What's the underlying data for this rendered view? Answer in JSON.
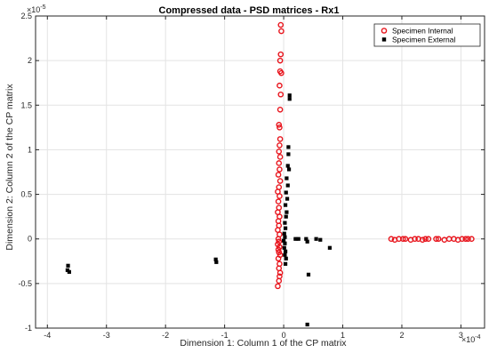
{
  "chart_data": {
    "type": "scatter",
    "title": "Compressed data - PSD matrices - Rx1",
    "xlabel": "Dimension 1: Column 1 of the CP matrix",
    "ylabel": "Dimension 2: Column 2 of the CP matrix",
    "x_exponent_label": "×10",
    "x_exponent_power": "-4",
    "y_exponent_label": "×10",
    "y_exponent_power": "-5",
    "xlim": [
      -4.2,
      3.4
    ],
    "ylim": [
      -1.0,
      2.5
    ],
    "x_ticks": [
      -4,
      -3,
      -2,
      -1,
      0,
      1,
      2,
      3
    ],
    "x_tick_labels": [
      "-4",
      "-3",
      "-2",
      "-1",
      "0",
      "1",
      "2",
      "3"
    ],
    "y_ticks": [
      -1,
      -0.5,
      0,
      0.5,
      1,
      1.5,
      2,
      2.5
    ],
    "y_tick_labels": [
      "-1",
      "-0.5",
      "0",
      "0.5",
      "1",
      "1.5",
      "2",
      "2.5"
    ],
    "grid": true,
    "legend_position": "top-right",
    "series": [
      {
        "name": "Specimen Internal",
        "marker": "circle-open",
        "color": "#e8141c",
        "points": [
          [
            -0.05,
            2.4
          ],
          [
            -0.04,
            2.33
          ],
          [
            -0.05,
            2.07
          ],
          [
            -0.06,
            2.0
          ],
          [
            -0.06,
            1.88
          ],
          [
            -0.04,
            1.86
          ],
          [
            -0.07,
            1.72
          ],
          [
            -0.05,
            1.62
          ],
          [
            -0.06,
            1.45
          ],
          [
            -0.08,
            1.28
          ],
          [
            -0.07,
            1.25
          ],
          [
            -0.06,
            1.12
          ],
          [
            -0.07,
            1.05
          ],
          [
            -0.08,
            0.98
          ],
          [
            -0.06,
            0.92
          ],
          [
            -0.08,
            0.85
          ],
          [
            -0.07,
            0.78
          ],
          [
            -0.09,
            0.72
          ],
          [
            -0.06,
            0.65
          ],
          [
            -0.08,
            0.58
          ],
          [
            -0.1,
            0.53
          ],
          [
            -0.07,
            0.48
          ],
          [
            -0.09,
            0.42
          ],
          [
            -0.08,
            0.35
          ],
          [
            -0.1,
            0.3
          ],
          [
            -0.07,
            0.25
          ],
          [
            -0.09,
            0.2
          ],
          [
            -0.08,
            0.15
          ],
          [
            -0.1,
            0.1
          ],
          [
            -0.07,
            0.05
          ],
          [
            -0.09,
            0.0
          ],
          [
            -0.08,
            -0.03
          ],
          [
            -0.1,
            -0.06
          ],
          [
            -0.07,
            -0.09
          ],
          [
            -0.09,
            -0.12
          ],
          [
            -0.08,
            -0.15
          ],
          [
            -0.06,
            -0.18
          ],
          [
            -0.09,
            -0.22
          ],
          [
            -0.07,
            -0.28
          ],
          [
            -0.08,
            -0.33
          ],
          [
            -0.06,
            -0.38
          ],
          [
            -0.07,
            -0.42
          ],
          [
            -0.08,
            -0.47
          ],
          [
            -0.1,
            -0.53
          ],
          [
            1.82,
            0.0
          ],
          [
            1.88,
            -0.01
          ],
          [
            1.95,
            0.0
          ],
          [
            2.02,
            0.0
          ],
          [
            2.06,
            0.0
          ],
          [
            2.15,
            -0.01
          ],
          [
            2.22,
            0.0
          ],
          [
            2.28,
            0.0
          ],
          [
            2.35,
            -0.01
          ],
          [
            2.4,
            0.0
          ],
          [
            2.45,
            0.0
          ],
          [
            2.58,
            0.0
          ],
          [
            2.62,
            0.0
          ],
          [
            2.72,
            -0.01
          ],
          [
            2.8,
            0.0
          ],
          [
            2.88,
            0.0
          ],
          [
            2.95,
            -0.01
          ],
          [
            3.02,
            0.0
          ],
          [
            3.08,
            0.0
          ],
          [
            3.12,
            0.0
          ],
          [
            3.18,
            0.0
          ]
        ]
      },
      {
        "name": "Specimen External",
        "marker": "square-filled",
        "color": "#000000",
        "points": [
          [
            0.1,
            1.61
          ],
          [
            0.1,
            1.57
          ],
          [
            0.08,
            1.03
          ],
          [
            0.08,
            0.95
          ],
          [
            0.07,
            0.82
          ],
          [
            0.09,
            0.78
          ],
          [
            0.05,
            0.68
          ],
          [
            0.07,
            0.6
          ],
          [
            0.04,
            0.52
          ],
          [
            0.06,
            0.45
          ],
          [
            0.03,
            0.38
          ],
          [
            0.05,
            0.3
          ],
          [
            0.04,
            0.25
          ],
          [
            0.02,
            0.18
          ],
          [
            0.03,
            0.12
          ],
          [
            0.01,
            0.06
          ],
          [
            0.02,
            0.02
          ],
          [
            0.0,
            -0.02
          ],
          [
            0.02,
            -0.05
          ],
          [
            0.01,
            -0.1
          ],
          [
            0.03,
            -0.14
          ],
          [
            0.02,
            -0.18
          ],
          [
            0.04,
            -0.22
          ],
          [
            0.03,
            -0.28
          ],
          [
            0.2,
            0.0
          ],
          [
            0.25,
            0.0
          ],
          [
            0.38,
            0.0
          ],
          [
            0.4,
            -0.03
          ],
          [
            0.55,
            0.0
          ],
          [
            0.62,
            -0.01
          ],
          [
            0.78,
            -0.1
          ],
          [
            0.42,
            -0.4
          ],
          [
            0.4,
            -0.96
          ],
          [
            -1.15,
            -0.23
          ],
          [
            -1.14,
            -0.26
          ],
          [
            -3.65,
            -0.3
          ],
          [
            -3.66,
            -0.35
          ],
          [
            -3.63,
            -0.37
          ]
        ]
      }
    ]
  }
}
